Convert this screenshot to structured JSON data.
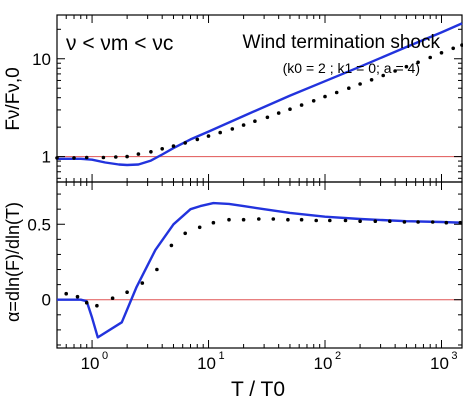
{
  "chart_data": [
    {
      "type": "line",
      "title": "Wind termination shock",
      "subtitle": "(k0 = 2 ; k1 = 0; a = 4)",
      "annotation": "ν < νm < νc",
      "xlabel": "",
      "ylabel": "Fν/Fν,0",
      "xscale": "log",
      "yscale": "log",
      "xlim": [
        0.5,
        1500
      ],
      "ylim": [
        0.55,
        28
      ],
      "y_ticks": [
        1,
        10
      ],
      "y_tick_labels": [
        "1",
        "10"
      ],
      "reference_line": {
        "y": 1,
        "color": "#e05555"
      },
      "grid": false,
      "series": [
        {
          "style": "line",
          "color": "#2233dd",
          "x": [
            0.5,
            0.8,
            1.0,
            1.3,
            1.7,
            2.0,
            2.5,
            3.2,
            4.0,
            5.0,
            7.0,
            10,
            20,
            50,
            100,
            200,
            500,
            1000,
            1500
          ],
          "y": [
            0.95,
            0.95,
            0.93,
            0.87,
            0.83,
            0.82,
            0.83,
            0.91,
            1.05,
            1.22,
            1.5,
            1.8,
            2.6,
            4.2,
            5.9,
            8.3,
            13.2,
            18.6,
            23
          ]
        },
        {
          "style": "dots",
          "color": "#000000",
          "x": [
            0.5,
            0.7,
            0.9,
            1.25,
            1.6,
            2.0,
            2.5,
            3.2,
            4.0,
            5.0,
            6.3,
            8,
            10,
            12.6,
            16,
            20,
            25,
            32,
            40,
            50,
            63,
            80,
            100,
            126,
            160,
            200,
            251,
            316,
            400,
            500,
            630,
            800,
            1000,
            1260,
            1500
          ],
          "y": [
            0.97,
            0.97,
            0.98,
            0.98,
            0.99,
            1.0,
            1.06,
            1.12,
            1.2,
            1.28,
            1.38,
            1.5,
            1.62,
            1.76,
            1.92,
            2.1,
            2.3,
            2.52,
            2.78,
            3.05,
            3.36,
            3.72,
            4.1,
            4.52,
            5.0,
            5.52,
            6.1,
            6.75,
            7.5,
            8.3,
            9.2,
            10.3,
            11.5,
            12.8,
            13.8
          ]
        }
      ]
    },
    {
      "type": "line",
      "xlabel": "T / T0",
      "ylabel": "α=dln(F)/dln(T)",
      "xscale": "log",
      "xlim": [
        0.5,
        1500
      ],
      "ylim": [
        -0.32,
        0.78
      ],
      "x_ticks": [
        1,
        10,
        100,
        1000
      ],
      "x_tick_labels": [
        "10",
        "10",
        "10",
        "10"
      ],
      "x_tick_exponents": [
        "0",
        "1",
        "2",
        "3"
      ],
      "y_ticks": [
        0,
        0.5
      ],
      "y_tick_labels": [
        "0",
        "0.5"
      ],
      "reference_line": {
        "y": 0,
        "color": "#e05555"
      },
      "grid": false,
      "series": [
        {
          "style": "line",
          "color": "#2233dd",
          "x": [
            0.5,
            0.8,
            0.9,
            1.0,
            1.12,
            1.8,
            2.4,
            3.5,
            5.0,
            7.0,
            8.5,
            11,
            15,
            20,
            30,
            50,
            100,
            200,
            500,
            1000,
            1500
          ],
          "y": [
            0.0,
            0.0,
            -0.01,
            -0.12,
            -0.25,
            -0.15,
            0.08,
            0.33,
            0.5,
            0.6,
            0.62,
            0.64,
            0.635,
            0.62,
            0.6,
            0.575,
            0.55,
            0.535,
            0.52,
            0.515,
            0.51
          ]
        },
        {
          "style": "dots",
          "color": "#000000",
          "x": [
            0.6,
            0.75,
            0.9,
            1.1,
            1.5,
            2.0,
            2.7,
            3.6,
            4.8,
            6.3,
            8.4,
            11,
            15,
            20,
            27,
            36,
            48,
            63,
            84,
            110,
            150,
            200,
            270,
            360,
            480,
            630,
            840,
            1100,
            1450
          ],
          "y": [
            0.04,
            0.02,
            -0.02,
            -0.04,
            0.01,
            0.05,
            0.11,
            0.2,
            0.36,
            0.44,
            0.48,
            0.51,
            0.53,
            0.53,
            0.535,
            0.535,
            0.53,
            0.53,
            0.525,
            0.525,
            0.525,
            0.52,
            0.52,
            0.52,
            0.515,
            0.515,
            0.515,
            0.51,
            0.51
          ]
        }
      ]
    }
  ]
}
